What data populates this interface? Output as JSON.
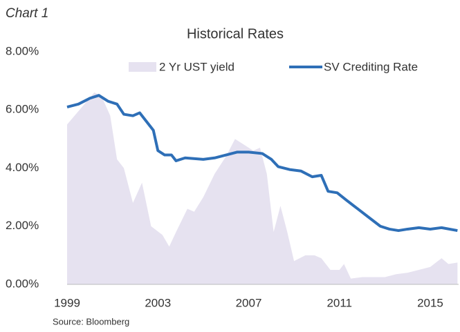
{
  "chart_data": {
    "type": "line",
    "label": "Chart 1",
    "title": "Historical Rates",
    "source": "Source: Bloomberg",
    "xlim": [
      1999,
      2016.25
    ],
    "xticks": [
      1999,
      2003,
      2007,
      2011,
      2015
    ],
    "ylim": [
      0,
      8
    ],
    "yticks": [
      {
        "value": 0,
        "label": "0.00%"
      },
      {
        "value": 2,
        "label": "2.00%"
      },
      {
        "value": 4,
        "label": "4.00%"
      },
      {
        "value": 6,
        "label": "6.00%"
      },
      {
        "value": 8,
        "label": "8.00%"
      }
    ],
    "series": [
      {
        "name": "2 Yr UST yield",
        "type": "area",
        "color": "#e6e2f0",
        "x": [
          1999.0,
          2000.2,
          2000.5,
          2000.9,
          2001.2,
          2001.5,
          2001.9,
          2002.3,
          2002.7,
          2003.2,
          2003.5,
          2003.8,
          2004.3,
          2004.6,
          2005.0,
          2005.5,
          2006.0,
          2006.4,
          2006.8,
          2007.2,
          2007.5,
          2007.8,
          2008.1,
          2008.4,
          2008.7,
          2009.0,
          2009.5,
          2009.9,
          2010.2,
          2010.6,
          2011.0,
          2011.2,
          2011.5,
          2012.0,
          2012.5,
          2013.0,
          2013.5,
          2014.0,
          2014.5,
          2015.0,
          2015.5,
          2015.8,
          2016.2
        ],
        "values": [
          5.5,
          6.6,
          6.5,
          5.8,
          4.3,
          4.0,
          2.8,
          3.5,
          2.0,
          1.7,
          1.3,
          1.8,
          2.6,
          2.5,
          3.0,
          3.8,
          4.4,
          5.0,
          4.8,
          4.6,
          4.7,
          3.8,
          1.8,
          2.7,
          1.8,
          0.8,
          1.0,
          1.0,
          0.9,
          0.5,
          0.5,
          0.7,
          0.2,
          0.25,
          0.25,
          0.25,
          0.35,
          0.4,
          0.5,
          0.6,
          0.9,
          0.7,
          0.75
        ]
      },
      {
        "name": "SV Crediting Rate",
        "type": "line",
        "color": "#2e6fb7",
        "x": [
          1999.0,
          1999.5,
          2000.0,
          2000.4,
          2000.8,
          2001.2,
          2001.5,
          2001.9,
          2002.2,
          2002.5,
          2002.8,
          2003.0,
          2003.3,
          2003.6,
          2003.8,
          2004.2,
          2005.0,
          2005.5,
          2006.0,
          2006.5,
          2007.0,
          2007.6,
          2008.0,
          2008.3,
          2008.8,
          2009.3,
          2009.8,
          2010.2,
          2010.5,
          2010.9,
          2011.3,
          2011.8,
          2012.3,
          2012.8,
          2013.2,
          2013.6,
          2014.0,
          2014.5,
          2015.0,
          2015.5,
          2016.2
        ],
        "values": [
          6.1,
          6.2,
          6.4,
          6.5,
          6.3,
          6.2,
          5.85,
          5.8,
          5.9,
          5.6,
          5.3,
          4.6,
          4.45,
          4.45,
          4.25,
          4.35,
          4.3,
          4.35,
          4.45,
          4.55,
          4.55,
          4.5,
          4.3,
          4.05,
          3.95,
          3.9,
          3.7,
          3.75,
          3.2,
          3.15,
          2.9,
          2.6,
          2.3,
          2.0,
          1.9,
          1.85,
          1.9,
          1.95,
          1.9,
          1.95,
          1.85
        ]
      }
    ]
  }
}
